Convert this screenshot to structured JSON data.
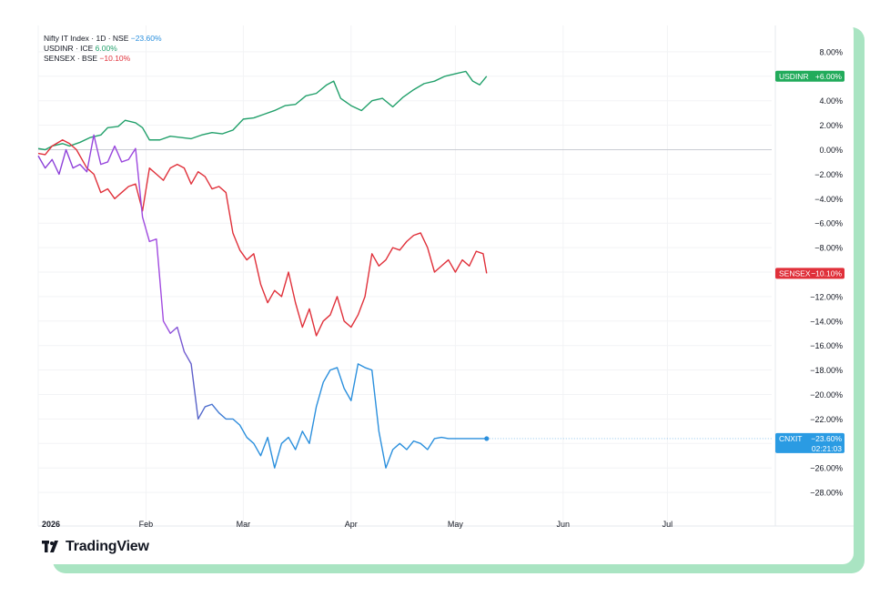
{
  "brand": {
    "logo_text": "TradingView"
  },
  "legend": [
    {
      "name": "Nifty IT Index · 1D · NSE",
      "value": "−23.60%",
      "color": "#2a8fdd"
    },
    {
      "name": "USDINR · ICE",
      "value": "6.00%",
      "color": "#22a06b"
    },
    {
      "name": "SENSEX · BSE",
      "value": "−10.10%",
      "color": "#e0303a"
    }
  ],
  "badges": [
    {
      "label": "USDINR",
      "value": "+6.00%",
      "color": "#22ab5b"
    },
    {
      "label": "SENSEX",
      "value": "−10.10%",
      "color": "#e0303a"
    },
    {
      "label": "CNXIT",
      "value": "−23.60%",
      "sub": "02:21:03",
      "color": "#2a9be3"
    }
  ],
  "chart_data": {
    "type": "line",
    "y_unit": "%",
    "ylim": [
      -29,
      9
    ],
    "y_ticks": [
      "8.00%",
      "6.00%",
      "4.00%",
      "2.00%",
      "0.00%",
      "−2.00%",
      "−4.00%",
      "−6.00%",
      "−8.00%",
      "−10.00%",
      "−12.00%",
      "−14.00%",
      "−16.00%",
      "−18.00%",
      "−20.00%",
      "−22.00%",
      "−24.00%",
      "−26.00%",
      "−28.00%"
    ],
    "x_ticks": [
      "2026",
      "Feb",
      "Mar",
      "Apr",
      "May",
      "Jun",
      "Jul"
    ],
    "xlim": [
      "2026-01-01",
      "2026-07-31"
    ],
    "grid": true,
    "series": [
      {
        "name": "USDINR",
        "color": "#22a06b",
        "x": [
          "2026-01-01",
          "2026-01-03",
          "2026-01-05",
          "2026-01-08",
          "2026-01-10",
          "2026-01-13",
          "2026-01-16",
          "2026-01-19",
          "2026-01-21",
          "2026-01-24",
          "2026-01-26",
          "2026-01-29",
          "2026-01-31",
          "2026-02-02",
          "2026-02-05",
          "2026-02-08",
          "2026-02-11",
          "2026-02-14",
          "2026-02-17",
          "2026-02-20",
          "2026-02-23",
          "2026-02-26",
          "2026-03-01",
          "2026-03-04",
          "2026-03-07",
          "2026-03-10",
          "2026-03-13",
          "2026-03-16",
          "2026-03-19",
          "2026-03-22",
          "2026-03-25",
          "2026-03-27",
          "2026-03-29",
          "2026-04-01",
          "2026-04-04",
          "2026-04-07",
          "2026-04-10",
          "2026-04-13",
          "2026-04-16",
          "2026-04-19",
          "2026-04-22",
          "2026-04-25",
          "2026-04-28",
          "2026-05-01",
          "2026-05-04",
          "2026-05-06",
          "2026-05-08",
          "2026-05-10"
        ],
        "y": [
          0.1,
          0.0,
          0.3,
          0.5,
          0.3,
          0.6,
          1.0,
          1.2,
          1.8,
          1.9,
          2.4,
          2.2,
          1.8,
          0.8,
          0.8,
          1.1,
          1.0,
          0.9,
          1.2,
          1.4,
          1.3,
          1.6,
          2.5,
          2.6,
          2.9,
          3.2,
          3.6,
          3.7,
          4.4,
          4.6,
          5.3,
          5.6,
          4.2,
          3.6,
          3.2,
          4.0,
          4.2,
          3.5,
          4.3,
          4.9,
          5.4,
          5.6,
          6.0,
          6.2,
          6.4,
          5.6,
          5.3,
          6.0
        ]
      },
      {
        "name": "SENSEX",
        "color": "#e0303a",
        "x": [
          "2026-01-01",
          "2026-01-03",
          "2026-01-05",
          "2026-01-08",
          "2026-01-10",
          "2026-01-12",
          "2026-01-15",
          "2026-01-17",
          "2026-01-19",
          "2026-01-21",
          "2026-01-23",
          "2026-01-25",
          "2026-01-27",
          "2026-01-29",
          "2026-01-31",
          "2026-02-02",
          "2026-02-04",
          "2026-02-06",
          "2026-02-08",
          "2026-02-10",
          "2026-02-12",
          "2026-02-14",
          "2026-02-16",
          "2026-02-18",
          "2026-02-20",
          "2026-02-22",
          "2026-02-24",
          "2026-02-26",
          "2026-02-28",
          "2026-03-02",
          "2026-03-04",
          "2026-03-06",
          "2026-03-08",
          "2026-03-10",
          "2026-03-12",
          "2026-03-14",
          "2026-03-16",
          "2026-03-18",
          "2026-03-20",
          "2026-03-22",
          "2026-03-24",
          "2026-03-26",
          "2026-03-28",
          "2026-03-30",
          "2026-04-01",
          "2026-04-03",
          "2026-04-05",
          "2026-04-07",
          "2026-04-09",
          "2026-04-11",
          "2026-04-13",
          "2026-04-15",
          "2026-04-17",
          "2026-04-19",
          "2026-04-21",
          "2026-04-23",
          "2026-04-25",
          "2026-04-27",
          "2026-04-29",
          "2026-05-01",
          "2026-05-03",
          "2026-05-05",
          "2026-05-07",
          "2026-05-09",
          "2026-05-10"
        ],
        "y": [
          -0.3,
          -0.4,
          0.3,
          0.8,
          0.5,
          0.0,
          -1.5,
          -2.0,
          -3.5,
          -3.2,
          -4.0,
          -3.5,
          -3.0,
          -2.8,
          -5.0,
          -1.5,
          -2.0,
          -2.5,
          -1.5,
          -1.2,
          -1.5,
          -2.8,
          -1.8,
          -2.2,
          -3.2,
          -3.0,
          -3.5,
          -6.8,
          -8.2,
          -9.0,
          -8.5,
          -11.0,
          -12.5,
          -11.5,
          -12.0,
          -10.0,
          -12.5,
          -14.5,
          -13.0,
          -15.2,
          -14.0,
          -13.5,
          -12.0,
          -14.0,
          -14.5,
          -13.5,
          -12.0,
          -8.5,
          -9.5,
          -9.0,
          -8.0,
          -8.2,
          -7.5,
          -7.0,
          -6.8,
          -8.0,
          -10.0,
          -9.5,
          -9.0,
          -10.0,
          -9.0,
          -9.5,
          -8.3,
          -8.5,
          -10.1
        ]
      },
      {
        "name": "Nifty IT Index",
        "color": "#2a8fdd",
        "x": [
          "2026-01-01",
          "2026-01-03",
          "2026-01-05",
          "2026-01-07",
          "2026-01-09",
          "2026-01-11",
          "2026-01-13",
          "2026-01-15",
          "2026-01-17",
          "2026-01-19",
          "2026-01-21",
          "2026-01-23",
          "2026-01-25",
          "2026-01-27",
          "2026-01-29",
          "2026-01-31",
          "2026-02-02",
          "2026-02-04",
          "2026-02-06",
          "2026-02-08",
          "2026-02-10",
          "2026-02-12",
          "2026-02-14",
          "2026-02-16",
          "2026-02-18",
          "2026-02-20",
          "2026-02-22",
          "2026-02-24",
          "2026-02-26",
          "2026-02-28",
          "2026-03-02",
          "2026-03-04",
          "2026-03-06",
          "2026-03-08",
          "2026-03-10",
          "2026-03-12",
          "2026-03-14",
          "2026-03-16",
          "2026-03-18",
          "2026-03-20",
          "2026-03-22",
          "2026-03-24",
          "2026-03-26",
          "2026-03-28",
          "2026-03-30",
          "2026-04-01",
          "2026-04-03",
          "2026-04-05",
          "2026-04-07",
          "2026-04-09",
          "2026-04-11",
          "2026-04-13",
          "2026-04-15",
          "2026-04-17",
          "2026-04-19",
          "2026-04-21",
          "2026-04-23",
          "2026-04-25",
          "2026-04-27",
          "2026-04-29",
          "2026-05-01",
          "2026-05-03",
          "2026-05-05",
          "2026-05-07",
          "2026-05-09",
          "2026-05-10"
        ],
        "y": [
          -0.5,
          -1.5,
          -0.8,
          -2.0,
          0.0,
          -1.5,
          -1.2,
          -1.8,
          1.2,
          -1.2,
          -1.0,
          0.3,
          -1.0,
          -0.8,
          0.1,
          -5.5,
          -7.5,
          -7.3,
          -14.0,
          -15.0,
          -14.5,
          -16.5,
          -17.5,
          -22.0,
          -21.0,
          -20.8,
          -21.5,
          -22.0,
          -22.0,
          -22.5,
          -23.5,
          -24.0,
          -25.0,
          -23.5,
          -26.0,
          -24.0,
          -23.5,
          -24.5,
          -23.0,
          -24.0,
          -21.0,
          -19.0,
          -18.0,
          -17.8,
          -19.5,
          -20.5,
          -17.5,
          -17.8,
          -18.0,
          -23.0,
          -26.0,
          -24.5,
          -24.0,
          -24.5,
          -23.8,
          -24.0,
          -24.5,
          -23.6,
          -23.5,
          -23.6,
          -23.6,
          -23.6,
          -23.6,
          -23.6,
          -23.6,
          -23.6
        ]
      }
    ]
  }
}
